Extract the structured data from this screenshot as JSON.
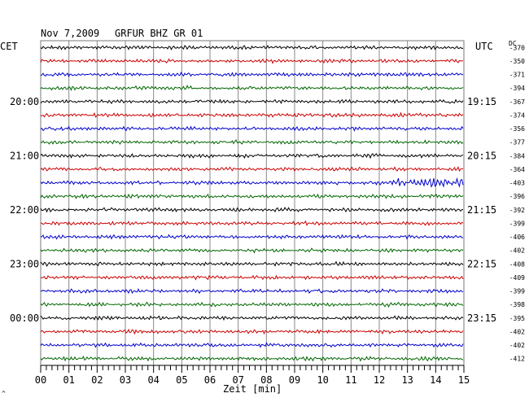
{
  "header": {
    "date": "Nov 7,2009",
    "station": "GRFUR BHZ GR 01"
  },
  "axis": {
    "left_zone": "CET",
    "right_zone": "UTC",
    "dc_label": "DC",
    "xlabel": "Zeit [min]",
    "corner_mark": "^"
  },
  "chart_data": {
    "type": "line",
    "title": "Nov 7,2009   GRFUR BHZ GR 01",
    "xlabel": "Zeit [min]",
    "ylabel": "",
    "xlim": [
      0,
      15
    ],
    "x_ticks": [
      "00",
      "01",
      "02",
      "03",
      "04",
      "05",
      "06",
      "07",
      "08",
      "09",
      "10",
      "11",
      "12",
      "13",
      "14",
      "15"
    ],
    "grid": true,
    "trace_colors": [
      "#000000",
      "#cc0000",
      "#0000cc",
      "#006600"
    ],
    "left_time_labels": [
      "20:00",
      "21:00",
      "22:00",
      "23:00",
      "00:00"
    ],
    "right_time_labels": [
      "19:15",
      "20:15",
      "21:15",
      "22:15",
      "23:15"
    ],
    "dc_values": [
      -370,
      -350,
      -371,
      -394,
      -367,
      -374,
      -356,
      -377,
      -384,
      -364,
      -403,
      -396,
      -392,
      -399,
      -406,
      -402,
      -408,
      -409,
      -399,
      -398,
      -395,
      -402,
      -402,
      -412
    ],
    "event": {
      "row": 10,
      "start_min": 12.5,
      "end_min": 15
    }
  }
}
